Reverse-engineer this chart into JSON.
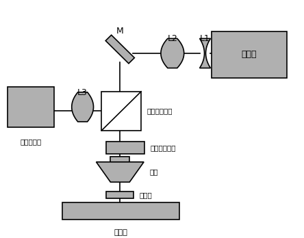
{
  "fig_width": 4.44,
  "fig_height": 3.48,
  "dpi": 100,
  "bg_color": "#ffffff",
  "component_color": "#b0b0b0",
  "line_color": "#000000",
  "labels": {
    "laser": "激光器",
    "image_sensor": "图像传感器",
    "pbs": "偏振分光棱镜",
    "qwp": "四分之一波片",
    "objective": "物镜",
    "sapphire": "蓝宝石",
    "stage": "位移台",
    "M": "M",
    "L1": "L1",
    "L2": "L2",
    "L3": "L3"
  }
}
